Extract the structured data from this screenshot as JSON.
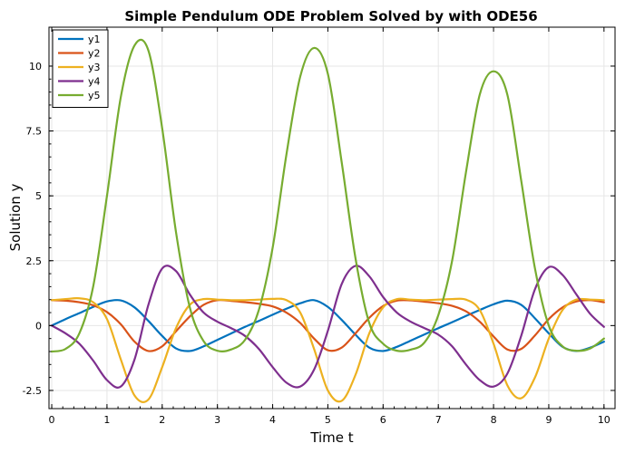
{
  "chart_data": {
    "type": "line",
    "title": "Simple Pendulum ODE Problem Solved by with ODE56",
    "xlabel": "Time t",
    "ylabel": "Solution y",
    "xlim": [
      -0.05,
      10.2
    ],
    "ylim": [
      -3.2,
      11.5
    ],
    "xticks": [
      0,
      1,
      2,
      3,
      4,
      5,
      6,
      7,
      8,
      9,
      10
    ],
    "xtick_labels": [
      "0",
      "1",
      "2",
      "3",
      "4",
      "5",
      "6",
      "7",
      "8",
      "9",
      "10"
    ],
    "yticks": [
      -2.5,
      0,
      2.5,
      5,
      7.5,
      10
    ],
    "ytick_labels": [
      "-2.5",
      "0",
      "2.5",
      "5",
      "7.5",
      "10"
    ],
    "grid": true,
    "legend_position": "top-left",
    "x": [
      0,
      0.25,
      0.5,
      0.75,
      1,
      1.25,
      1.5,
      1.75,
      2,
      2.25,
      2.5,
      2.75,
      3,
      3.25,
      3.5,
      3.75,
      4,
      4.25,
      4.5,
      4.75,
      5,
      5.25,
      5.5,
      5.75,
      6,
      6.25,
      6.5,
      6.75,
      7,
      7.25,
      7.5,
      7.75,
      8,
      8.25,
      8.5,
      8.75,
      9,
      9.25,
      9.5,
      9.75,
      10
    ],
    "series": [
      {
        "name": "y1",
        "color": "#0072BD",
        "values": [
          0,
          0.25,
          0.48,
          0.72,
          0.93,
          0.97,
          0.7,
          0.18,
          -0.4,
          -0.88,
          -0.98,
          -0.8,
          -0.55,
          -0.3,
          -0.05,
          0.18,
          0.42,
          0.65,
          0.86,
          0.98,
          0.72,
          0.22,
          -0.35,
          -0.85,
          -0.98,
          -0.82,
          -0.58,
          -0.34,
          -0.1,
          0.13,
          0.37,
          0.6,
          0.82,
          0.96,
          0.8,
          0.28,
          -0.3,
          -0.82,
          -0.98,
          -0.85,
          -0.62
        ]
      },
      {
        "name": "y2",
        "color": "#D95319",
        "values": [
          0.98,
          0.96,
          0.9,
          0.78,
          0.52,
          0.05,
          -0.62,
          -0.98,
          -0.8,
          -0.22,
          0.35,
          0.8,
          0.98,
          0.95,
          0.9,
          0.84,
          0.74,
          0.5,
          0.1,
          -0.5,
          -0.95,
          -0.85,
          -0.3,
          0.3,
          0.75,
          0.96,
          0.97,
          0.92,
          0.86,
          0.76,
          0.55,
          0.15,
          -0.42,
          -0.92,
          -0.9,
          -0.38,
          0.25,
          0.7,
          0.93,
          0.98,
          0.9
        ]
      },
      {
        "name": "y3",
        "color": "#EDB120",
        "values": [
          0.98,
          1.02,
          1.05,
          0.9,
          0.25,
          -1.3,
          -2.7,
          -2.85,
          -1.6,
          -0.1,
          0.8,
          1.02,
          1.0,
          0.98,
          0.98,
          1.0,
          1.03,
          0.98,
          0.5,
          -0.9,
          -2.5,
          -2.9,
          -1.9,
          -0.3,
          0.7,
          1.02,
          1.0,
          0.98,
          1.0,
          1.02,
          1.0,
          0.6,
          -0.7,
          -2.3,
          -2.8,
          -2.0,
          -0.5,
          0.6,
          1.0,
          1.0,
          0.98
        ]
      },
      {
        "name": "y4",
        "color": "#7E2F8E",
        "values": [
          0,
          -0.3,
          -0.7,
          -1.35,
          -2.1,
          -2.35,
          -1.3,
          0.8,
          2.2,
          2.1,
          1.2,
          0.5,
          0.15,
          -0.1,
          -0.4,
          -0.9,
          -1.6,
          -2.2,
          -2.35,
          -1.7,
          -0.2,
          1.6,
          2.3,
          1.9,
          1.1,
          0.5,
          0.15,
          -0.1,
          -0.35,
          -0.8,
          -1.5,
          -2.1,
          -2.35,
          -1.85,
          -0.4,
          1.4,
          2.25,
          1.95,
          1.2,
          0.45,
          -0.05
        ]
      },
      {
        "name": "y5",
        "color": "#77AC30",
        "values": [
          -1,
          -0.9,
          -0.3,
          1.5,
          5.0,
          8.8,
          10.8,
          10.6,
          7.6,
          3.6,
          0.7,
          -0.6,
          -0.97,
          -0.92,
          -0.55,
          0.6,
          3.0,
          6.6,
          9.6,
          10.7,
          9.7,
          6.3,
          2.6,
          0.1,
          -0.7,
          -0.97,
          -0.93,
          -0.65,
          0.4,
          2.5,
          5.9,
          8.9,
          9.8,
          8.9,
          5.6,
          2.2,
          0.0,
          -0.8,
          -0.97,
          -0.88,
          -0.5
        ]
      }
    ]
  }
}
